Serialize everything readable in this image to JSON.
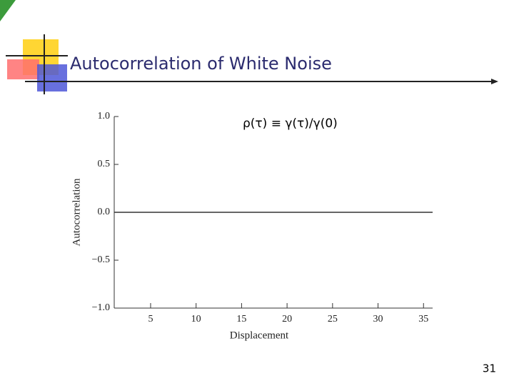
{
  "slide": {
    "title": "Autocorrelation of White Noise",
    "page_number": "31"
  },
  "chart_data": {
    "type": "line",
    "annotation": "ρ(τ) ≡ γ(τ)/γ(0)",
    "xlabel": "Displacement",
    "ylabel": "Autocorrelation",
    "x": [
      1,
      2,
      3,
      4,
      5,
      6,
      7,
      8,
      9,
      10,
      11,
      12,
      13,
      14,
      15,
      16,
      17,
      18,
      19,
      20,
      21,
      22,
      23,
      24,
      25,
      26,
      27,
      28,
      29,
      30,
      31,
      32,
      33,
      34,
      35,
      36
    ],
    "values": [
      0,
      0,
      0,
      0,
      0,
      0,
      0,
      0,
      0,
      0,
      0,
      0,
      0,
      0,
      0,
      0,
      0,
      0,
      0,
      0,
      0,
      0,
      0,
      0,
      0,
      0,
      0,
      0,
      0,
      0,
      0,
      0,
      0,
      0,
      0,
      0
    ],
    "color": "#333333",
    "xlim": [
      1,
      36
    ],
    "xticks": [
      5,
      10,
      15,
      20,
      25,
      30,
      35
    ],
    "ylim": [
      -1,
      1
    ],
    "yticks": [
      {
        "value": -1,
        "label": "−1.0"
      },
      {
        "value": -0.5,
        "label": "−0.5"
      },
      {
        "value": 0,
        "label": "0.0"
      },
      {
        "value": 0.5,
        "label": "0.5"
      },
      {
        "value": 1,
        "label": "1.0"
      }
    ]
  }
}
